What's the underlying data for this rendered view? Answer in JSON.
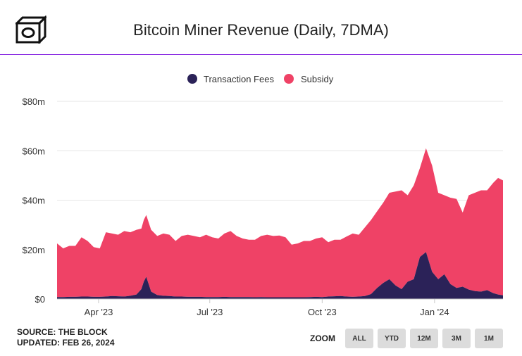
{
  "header": {
    "title": "Bitcoin Miner Revenue (Daily, 7DMA)"
  },
  "footer": {
    "source": "SOURCE: THE BLOCK",
    "updated": "UPDATED: FEB 26, 2024",
    "zoom_label": "ZOOM",
    "zoom_options": [
      "ALL",
      "YTD",
      "12M",
      "3M",
      "1M"
    ]
  },
  "colors": {
    "transaction_fees": "#2b2258",
    "subsidy": "#ef4266",
    "accent_line": "#8a2be2"
  },
  "chart_data": {
    "type": "area",
    "stacked": true,
    "title": "Bitcoin Miner Revenue (Daily, 7DMA)",
    "legend_position": "top-center",
    "grid": true,
    "x_range": [
      "2023-02-26",
      "2024-02-26"
    ],
    "ylim": [
      0,
      80
    ],
    "y_ticks": [
      {
        "value": 0,
        "label": "$0"
      },
      {
        "value": 20,
        "label": "$20m"
      },
      {
        "value": 40,
        "label": "$40m"
      },
      {
        "value": 60,
        "label": "$60m"
      },
      {
        "value": 80,
        "label": "$80m"
      }
    ],
    "x_ticks": [
      {
        "date": "2023-04-01",
        "label": "Apr '23"
      },
      {
        "date": "2023-07-01",
        "label": "Jul '23"
      },
      {
        "date": "2023-10-01",
        "label": "Oct '23"
      },
      {
        "date": "2024-01-01",
        "label": "Jan '24"
      }
    ],
    "x": [
      "2023-02-26",
      "2023-03-03",
      "2023-03-08",
      "2023-03-13",
      "2023-03-18",
      "2023-03-23",
      "2023-03-28",
      "2023-04-02",
      "2023-04-07",
      "2023-04-12",
      "2023-04-17",
      "2023-04-22",
      "2023-04-27",
      "2023-05-02",
      "2023-05-06",
      "2023-05-08",
      "2023-05-10",
      "2023-05-14",
      "2023-05-19",
      "2023-05-24",
      "2023-05-29",
      "2023-06-03",
      "2023-06-08",
      "2023-06-13",
      "2023-06-18",
      "2023-06-23",
      "2023-06-28",
      "2023-07-03",
      "2023-07-08",
      "2023-07-13",
      "2023-07-18",
      "2023-07-23",
      "2023-07-28",
      "2023-08-02",
      "2023-08-07",
      "2023-08-12",
      "2023-08-17",
      "2023-08-22",
      "2023-08-27",
      "2023-09-01",
      "2023-09-06",
      "2023-09-11",
      "2023-09-16",
      "2023-09-21",
      "2023-09-26",
      "2023-10-01",
      "2023-10-06",
      "2023-10-11",
      "2023-10-16",
      "2023-10-21",
      "2023-10-26",
      "2023-10-31",
      "2023-11-05",
      "2023-11-10",
      "2023-11-15",
      "2023-11-20",
      "2023-11-25",
      "2023-11-30",
      "2023-12-05",
      "2023-12-10",
      "2023-12-15",
      "2023-12-20",
      "2023-12-25",
      "2023-12-30",
      "2024-01-04",
      "2024-01-09",
      "2024-01-14",
      "2024-01-19",
      "2024-01-24",
      "2024-01-29",
      "2024-02-03",
      "2024-02-08",
      "2024-02-13",
      "2024-02-18",
      "2024-02-22",
      "2024-02-26"
    ],
    "series": [
      {
        "name": "Transaction Fees",
        "values": [
          0.8,
          0.8,
          0.9,
          0.9,
          1.0,
          1.0,
          0.9,
          0.9,
          1.0,
          1.2,
          1.1,
          1.0,
          1.3,
          1.8,
          4.0,
          7.0,
          9.0,
          3.0,
          1.6,
          1.3,
          1.2,
          1.0,
          1.0,
          0.9,
          0.9,
          0.9,
          0.8,
          0.8,
          0.8,
          0.9,
          0.8,
          0.8,
          0.8,
          0.8,
          0.7,
          0.8,
          0.7,
          0.7,
          0.7,
          0.7,
          0.7,
          0.7,
          0.7,
          0.8,
          0.9,
          0.8,
          1.0,
          1.1,
          1.2,
          1.0,
          0.9,
          1.0,
          1.2,
          2.0,
          4.5,
          6.5,
          8.0,
          5.5,
          4.0,
          7.0,
          8.0,
          17.0,
          19.0,
          11.0,
          8.0,
          10.0,
          6.0,
          4.5,
          5.0,
          3.8,
          3.2,
          3.0,
          3.6,
          2.4,
          1.8,
          1.5
        ]
      },
      {
        "name": "Subsidy",
        "values": [
          21.7,
          19.7,
          20.6,
          20.6,
          24.0,
          22.5,
          20.1,
          19.6,
          26.0,
          25.3,
          24.9,
          26.5,
          25.7,
          26.2,
          24.5,
          25.0,
          25.0,
          25.0,
          23.9,
          25.2,
          24.8,
          22.5,
          24.5,
          25.1,
          24.6,
          24.1,
          25.2,
          24.2,
          23.7,
          25.6,
          26.7,
          24.7,
          23.7,
          23.2,
          23.3,
          24.7,
          25.3,
          24.8,
          25.0,
          24.3,
          21.3,
          21.8,
          22.8,
          22.7,
          23.6,
          24.2,
          22.0,
          22.9,
          22.8,
          24.3,
          25.6,
          25.0,
          27.8,
          30.0,
          31.0,
          32.5,
          35.0,
          38.0,
          40.0,
          35.0,
          38.0,
          36.0,
          42.0,
          43.0,
          35.0,
          32.0,
          35.0,
          36.0,
          30.0,
          38.2,
          39.8,
          41.0,
          40.4,
          44.6,
          47.2,
          46.5
        ]
      }
    ]
  }
}
